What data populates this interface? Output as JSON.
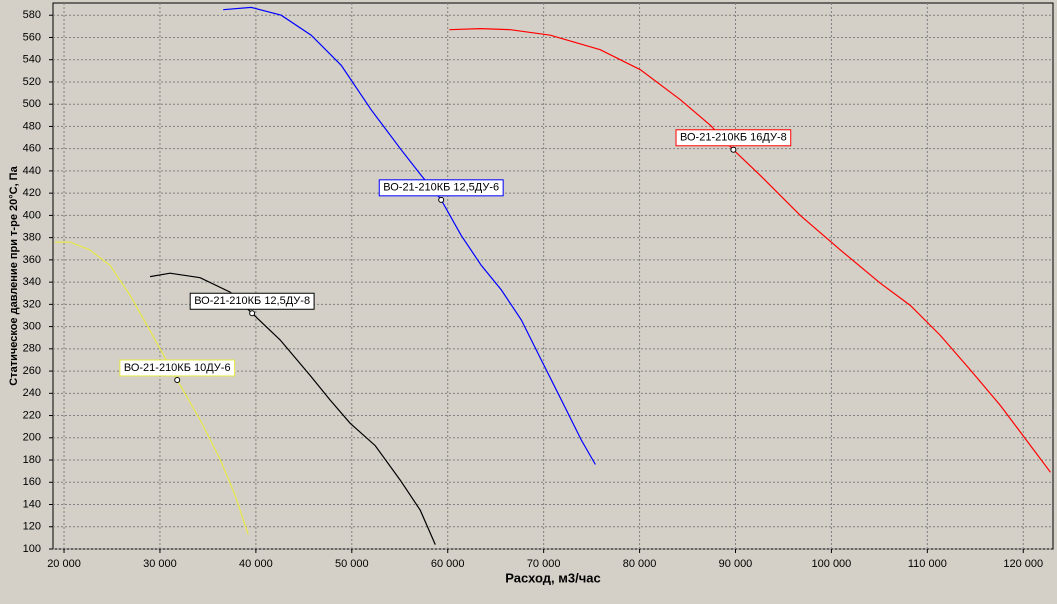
{
  "chart_data": {
    "type": "line",
    "x_label": "Расход, м3/час",
    "y_label": "Статическое давление при т-ре 20°С, Па",
    "xlim": [
      18850,
      123100
    ],
    "ylim": [
      100,
      591
    ],
    "xticks": [
      {
        "value": 20000,
        "label": "20 000"
      },
      {
        "value": 30000,
        "label": "30 000"
      },
      {
        "value": 40000,
        "label": "40 000"
      },
      {
        "value": 50000,
        "label": "50 000"
      },
      {
        "value": 60000,
        "label": "60 000"
      },
      {
        "value": 70000,
        "label": "70 000"
      },
      {
        "value": 80000,
        "label": "80 000"
      },
      {
        "value": 90000,
        "label": "90 000"
      },
      {
        "value": 100000,
        "label": "100 000"
      },
      {
        "value": 110000,
        "label": "110 000"
      },
      {
        "value": 120000,
        "label": "120 000"
      }
    ],
    "yticks": [
      100,
      120,
      140,
      160,
      180,
      200,
      220,
      240,
      260,
      280,
      300,
      320,
      340,
      360,
      380,
      400,
      420,
      440,
      460,
      480,
      500,
      520,
      540,
      560,
      580
    ],
    "grid": true,
    "series": [
      {
        "name": "ВО-21-210КБ 10ДУ-6",
        "color": "#e8e848",
        "x": [
          19060,
          20630,
          22700,
          24800,
          26900,
          29500,
          31800,
          34200,
          36300,
          37800,
          39200
        ],
        "values": [
          376,
          376,
          369,
          355,
          328,
          288,
          252,
          216,
          180,
          149,
          113
        ]
      },
      {
        "name": "ВО-21-210КБ 12,5ДУ-8",
        "color": "#000000",
        "x": [
          28970,
          31060,
          34180,
          37310,
          39610,
          42530,
          45660,
          47740,
          49830,
          52440,
          55050,
          57130,
          58700
        ],
        "values": [
          345,
          348,
          344,
          331,
          312,
          288,
          256,
          234,
          213,
          193,
          162,
          135,
          104
        ]
      },
      {
        "name": "ВО-21-210КБ 12,5ДУ-6",
        "color": "#0000ff",
        "x": [
          36590,
          39510,
          42640,
          45770,
          48900,
          52020,
          55150,
          57240,
          59320,
          61410,
          63500,
          65590,
          67670,
          69760,
          71850,
          73930,
          75390
        ],
        "values": [
          585,
          587,
          580,
          562,
          535,
          495,
          459,
          436,
          414,
          382,
          355,
          333,
          306,
          270,
          234,
          198,
          176
        ]
      },
      {
        "name": "ВО-21-210КБ 16ДУ-8",
        "color": "#ff0000",
        "x": [
          60160,
          63390,
          66520,
          70690,
          75900,
          80080,
          84250,
          87380,
          89780,
          92590,
          96760,
          100930,
          105100,
          108230,
          111360,
          114490,
          117620,
          120750,
          122840
        ],
        "values": [
          567,
          568,
          567,
          562,
          549,
          531,
          504,
          481,
          459,
          436,
          400,
          369,
          339,
          319,
          292,
          261,
          229,
          193,
          169
        ]
      }
    ]
  }
}
